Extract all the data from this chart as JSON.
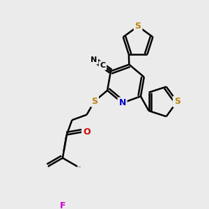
{
  "bg_color": "#ebebeb",
  "bond_color": "#000000",
  "bond_width": 1.8,
  "atom_colors": {
    "S": "#b8860b",
    "N": "#0000cc",
    "F": "#cc00cc",
    "O": "#cc0000",
    "C": "#000000"
  }
}
